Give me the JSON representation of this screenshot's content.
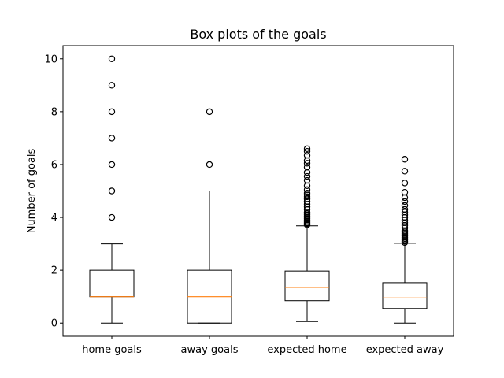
{
  "chart_data": {
    "type": "box",
    "title": "Box plots of the goals",
    "xlabel": "",
    "ylabel": "Number of goals",
    "ylim": [
      -0.5,
      10.5
    ],
    "yticks": [
      0,
      2,
      4,
      6,
      8,
      10
    ],
    "grid": false,
    "categories": [
      "home goals",
      "away goals",
      "expected home",
      "expected away"
    ],
    "boxes": [
      {
        "category": "home goals",
        "whisker_low": 0,
        "q1": 1,
        "median": 1,
        "q3": 2,
        "whisker_high": 3,
        "outliers": [
          4,
          5,
          6,
          7,
          8,
          9,
          10
        ]
      },
      {
        "category": "away goals",
        "whisker_low": 0,
        "q1": 0,
        "median": 1,
        "q3": 2,
        "whisker_high": 5,
        "outliers": [
          6,
          8
        ]
      },
      {
        "category": "expected home",
        "whisker_low": 0.06,
        "q1": 0.85,
        "median": 1.35,
        "q3": 1.97,
        "whisker_high": 3.68,
        "outliers": [
          3.72,
          3.76,
          3.8,
          3.85,
          3.9,
          3.95,
          4.0,
          4.05,
          4.1,
          4.15,
          4.2,
          4.3,
          4.4,
          4.5,
          4.6,
          4.7,
          4.78,
          4.85,
          4.92,
          5.05,
          5.2,
          5.4,
          5.55,
          5.7,
          5.9,
          6.05,
          6.15,
          6.35,
          6.5,
          6.6
        ]
      },
      {
        "category": "expected away",
        "whisker_low": 0,
        "q1": 0.55,
        "median": 0.95,
        "q3": 1.53,
        "whisker_high": 3.02,
        "outliers": [
          3.05,
          3.1,
          3.15,
          3.2,
          3.25,
          3.3,
          3.35,
          3.4,
          3.45,
          3.5,
          3.6,
          3.7,
          3.8,
          3.9,
          4.0,
          4.1,
          4.2,
          4.3,
          4.45,
          4.6,
          4.75,
          4.95,
          5.3,
          5.75,
          6.2
        ]
      }
    ],
    "colors": {
      "box": "#000000",
      "median": "#ff7f0e",
      "outlier_edge": "#000000"
    }
  }
}
